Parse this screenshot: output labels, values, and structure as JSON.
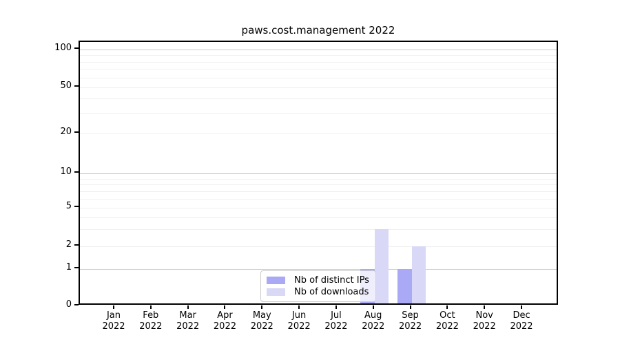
{
  "title": "paws.cost.management 2022",
  "chart_data": {
    "type": "bar",
    "title": "paws.cost.management 2022",
    "categories": [
      "Jan 2022",
      "Feb 2022",
      "Mar 2022",
      "Apr 2022",
      "May 2022",
      "Jun 2022",
      "Jul 2022",
      "Aug 2022",
      "Sep 2022",
      "Oct 2022",
      "Nov 2022",
      "Dec 2022"
    ],
    "series": [
      {
        "name": "Nb of distinct IPs",
        "color": "#a9a9f5",
        "values": [
          0,
          0,
          0,
          0,
          0,
          0,
          0,
          1,
          1,
          0,
          0,
          0
        ]
      },
      {
        "name": "Nb of downloads",
        "color": "#d9d9f7",
        "values": [
          0,
          0,
          0,
          0,
          0,
          0,
          0,
          3,
          2,
          0,
          0,
          0
        ]
      }
    ],
    "xlabel": "",
    "ylabel": "",
    "yscale": "symlog",
    "ylim": [
      0,
      115
    ],
    "y_ticks_labeled": [
      0,
      1,
      2,
      5,
      10,
      20,
      50,
      100
    ],
    "y_ticks_major": [
      1,
      10,
      100
    ],
    "y_ticks_minor": [
      2,
      3,
      4,
      5,
      6,
      7,
      8,
      9,
      20,
      30,
      40,
      50,
      60,
      70,
      80,
      90
    ],
    "grid": "horizontal",
    "legend_position": "lower center"
  },
  "colors": {
    "major_grid": "#c9c9c9",
    "minor_grid": "#f0f0f0",
    "spine": "#000000",
    "text": "#000000",
    "legend_border": "#cccccc",
    "legend_bg": "rgba(255,255,255,0.8)"
  }
}
